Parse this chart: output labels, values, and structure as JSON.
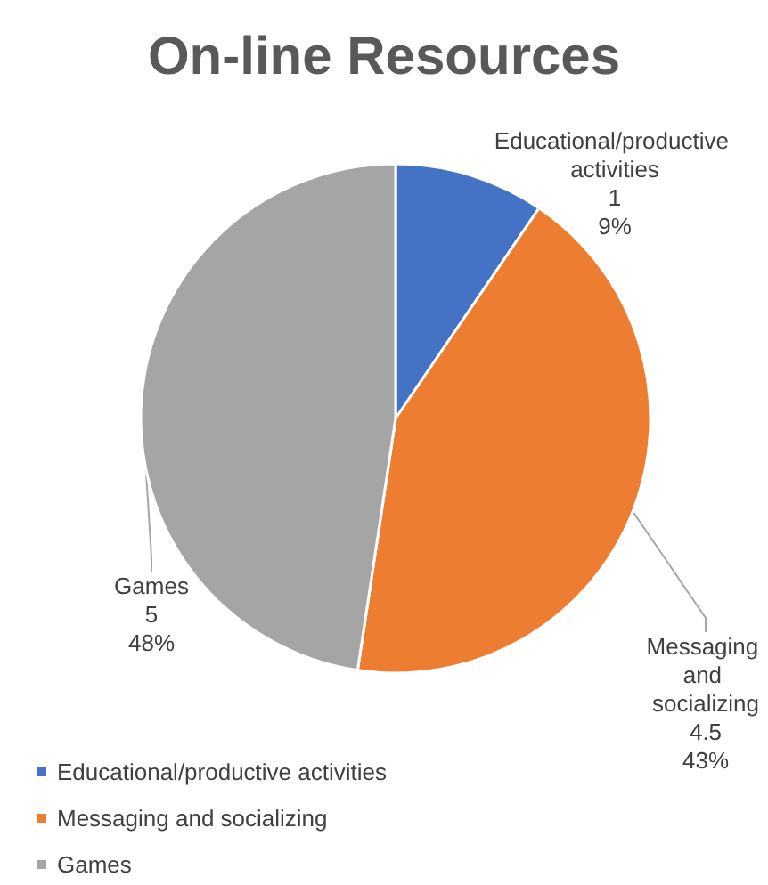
{
  "chart_data": {
    "type": "pie",
    "title": "On-line Resources",
    "categories": [
      "Educational/productive activities",
      "Messaging and socializing",
      "Games"
    ],
    "values": [
      1,
      4.5,
      5
    ],
    "colors": [
      "#4472c4",
      "#ed7d31",
      "#a5a5a5"
    ],
    "value_labels": [
      "1\n9%",
      "4.5\n43%",
      "5\n48%"
    ],
    "legend": "bottom left"
  }
}
